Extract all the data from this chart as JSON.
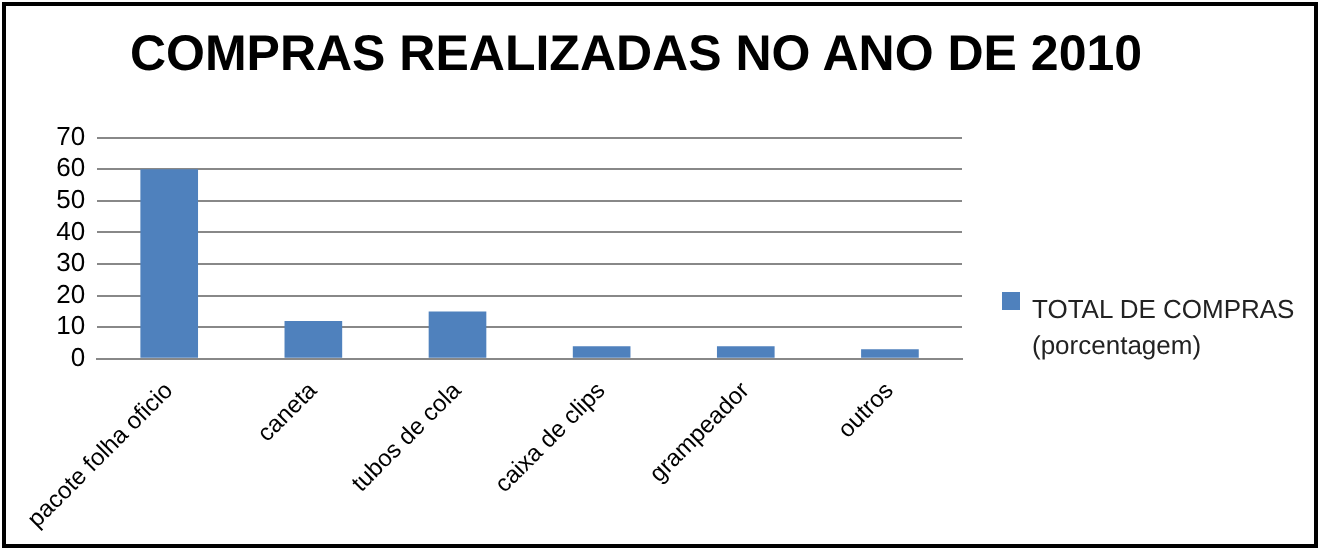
{
  "chart_data": {
    "type": "bar",
    "title": "COMPRAS REALIZADAS NO ANO DE 2010",
    "categories": [
      "pacote folha oficio",
      "caneta",
      "tubos de cola",
      "caixa de clips",
      "grampeador",
      "outros"
    ],
    "series": [
      {
        "name": "TOTAL DE COMPRAS (porcentagem)",
        "color": "#4f81bd",
        "values": [
          60,
          12,
          15,
          4,
          4,
          3
        ]
      }
    ],
    "ylim": [
      0,
      70
    ],
    "yticks": [
      0,
      10,
      20,
      30,
      40,
      50,
      60,
      70
    ],
    "grid": "y",
    "legend": "right"
  }
}
